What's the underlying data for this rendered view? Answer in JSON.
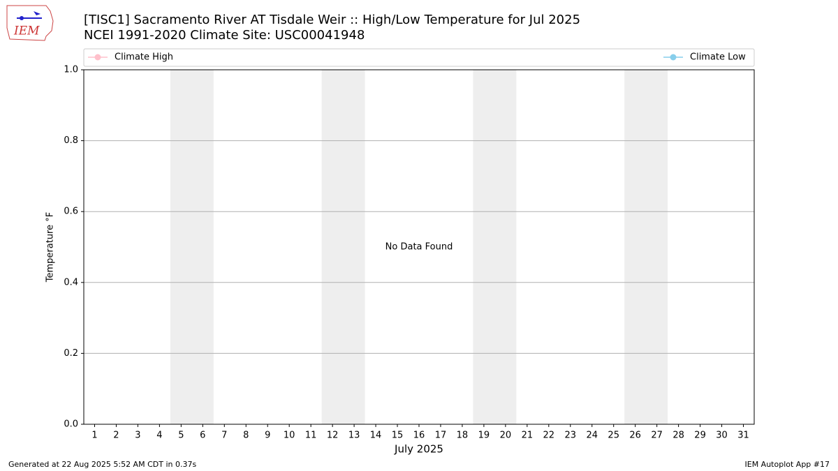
{
  "logo_text": "IEM",
  "footer": {
    "left": "Generated at 22 Aug 2025 5:52 AM CDT in 0.37s",
    "right": "IEM Autoplot App #17"
  },
  "chart_data": {
    "type": "line",
    "title": "[TISC1] Sacramento River  AT Tisdale Weir :: High/Low Temperature for Jul 2025",
    "subtitle": "NCEI 1991-2020 Climate Site: USC00041948",
    "xlabel": "July 2025",
    "ylabel": "Temperature °F",
    "annotation": {
      "text": "No Data Found",
      "x": 16,
      "y": 0.5
    },
    "x": [
      1,
      2,
      3,
      4,
      5,
      6,
      7,
      8,
      9,
      10,
      11,
      12,
      13,
      14,
      15,
      16,
      17,
      18,
      19,
      20,
      21,
      22,
      23,
      24,
      25,
      26,
      27,
      28,
      29,
      30,
      31
    ],
    "series": [
      {
        "name": "Climate High",
        "color": "#ffc0cb",
        "values": [
          null,
          null,
          null,
          null,
          null,
          null,
          null,
          null,
          null,
          null,
          null,
          null,
          null,
          null,
          null,
          null,
          null,
          null,
          null,
          null,
          null,
          null,
          null,
          null,
          null,
          null,
          null,
          null,
          null,
          null,
          null
        ]
      },
      {
        "name": "Climate Low",
        "color": "#87ceeb",
        "values": [
          null,
          null,
          null,
          null,
          null,
          null,
          null,
          null,
          null,
          null,
          null,
          null,
          null,
          null,
          null,
          null,
          null,
          null,
          null,
          null,
          null,
          null,
          null,
          null,
          null,
          null,
          null,
          null,
          null,
          null,
          null
        ]
      }
    ],
    "shaded_ranges": [
      [
        4.5,
        6.5
      ],
      [
        11.5,
        13.5
      ],
      [
        18.5,
        20.5
      ],
      [
        25.5,
        27.5
      ]
    ],
    "shade_color": "#eeeeee",
    "xlim": [
      0.5,
      31.5
    ],
    "xticks": [
      1,
      2,
      3,
      4,
      5,
      6,
      7,
      8,
      9,
      10,
      11,
      12,
      13,
      14,
      15,
      16,
      17,
      18,
      19,
      20,
      21,
      22,
      23,
      24,
      25,
      26,
      27,
      28,
      29,
      30,
      31
    ],
    "ylim": [
      0,
      1
    ],
    "yticks": [
      {
        "value": 0,
        "label": "0.0"
      },
      {
        "value": 0.2,
        "label": "0.2"
      },
      {
        "value": 0.4,
        "label": "0.4"
      },
      {
        "value": 0.6,
        "label": "0.6"
      },
      {
        "value": 0.8,
        "label": "0.8"
      },
      {
        "value": 1,
        "label": "1.0"
      }
    ],
    "grid": true
  }
}
